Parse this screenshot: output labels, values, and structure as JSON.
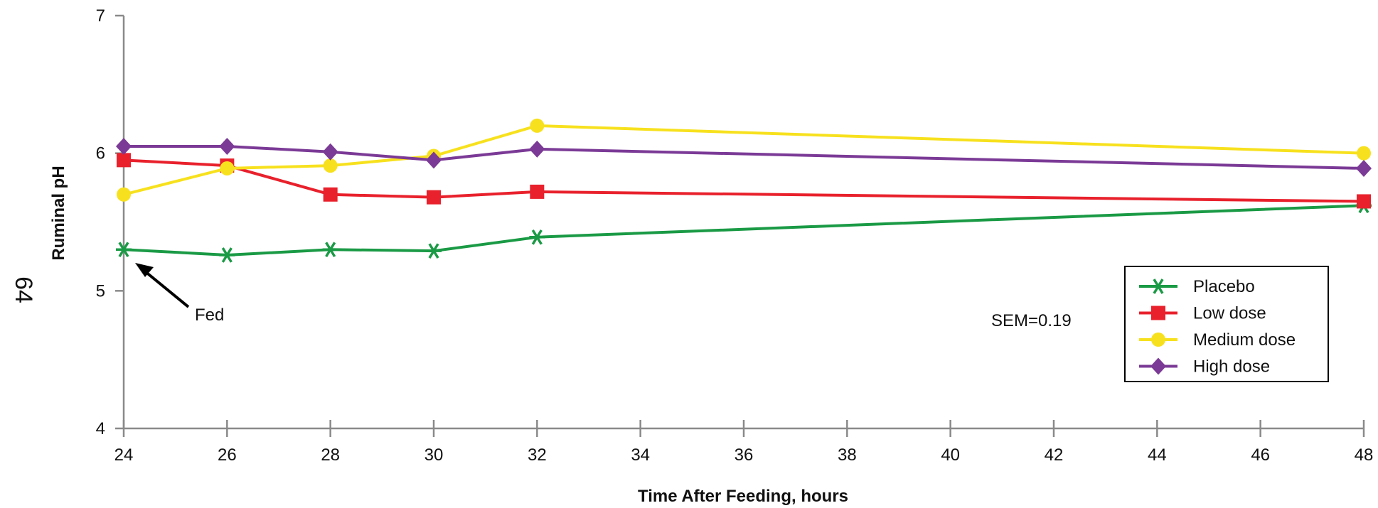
{
  "page_number": "64",
  "chart_data": {
    "type": "line",
    "title": "",
    "xlabel": "Time After Feeding, hours",
    "ylabel": "Ruminal pH",
    "xlim": [
      24,
      48
    ],
    "ylim": [
      4,
      7
    ],
    "x_ticks": [
      24,
      26,
      28,
      30,
      32,
      34,
      36,
      38,
      40,
      42,
      44,
      46,
      48
    ],
    "y_ticks": [
      4,
      5,
      6,
      7
    ],
    "x": [
      24,
      26,
      28,
      30,
      32,
      48
    ],
    "grid": false,
    "legend_position": "right",
    "series": [
      {
        "name": "Placebo",
        "color": "#1a9a45",
        "marker": "asterisk",
        "values": [
          5.3,
          5.26,
          5.3,
          5.29,
          5.39,
          5.62
        ]
      },
      {
        "name": "Low dose",
        "color": "#e8212c",
        "marker": "square",
        "values": [
          5.95,
          5.91,
          5.7,
          5.68,
          5.72,
          5.65
        ]
      },
      {
        "name": "Medium dose",
        "color": "#f7e11e",
        "marker": "circle",
        "values": [
          5.7,
          5.89,
          5.91,
          5.98,
          6.2,
          6.0
        ]
      },
      {
        "name": "High dose",
        "color": "#7b3a96",
        "marker": "diamond",
        "values": [
          6.05,
          6.05,
          6.01,
          5.95,
          6.03,
          5.89
        ]
      }
    ],
    "annotations": {
      "fed_label": "Fed",
      "sem_label": "SEM=0.19"
    }
  }
}
